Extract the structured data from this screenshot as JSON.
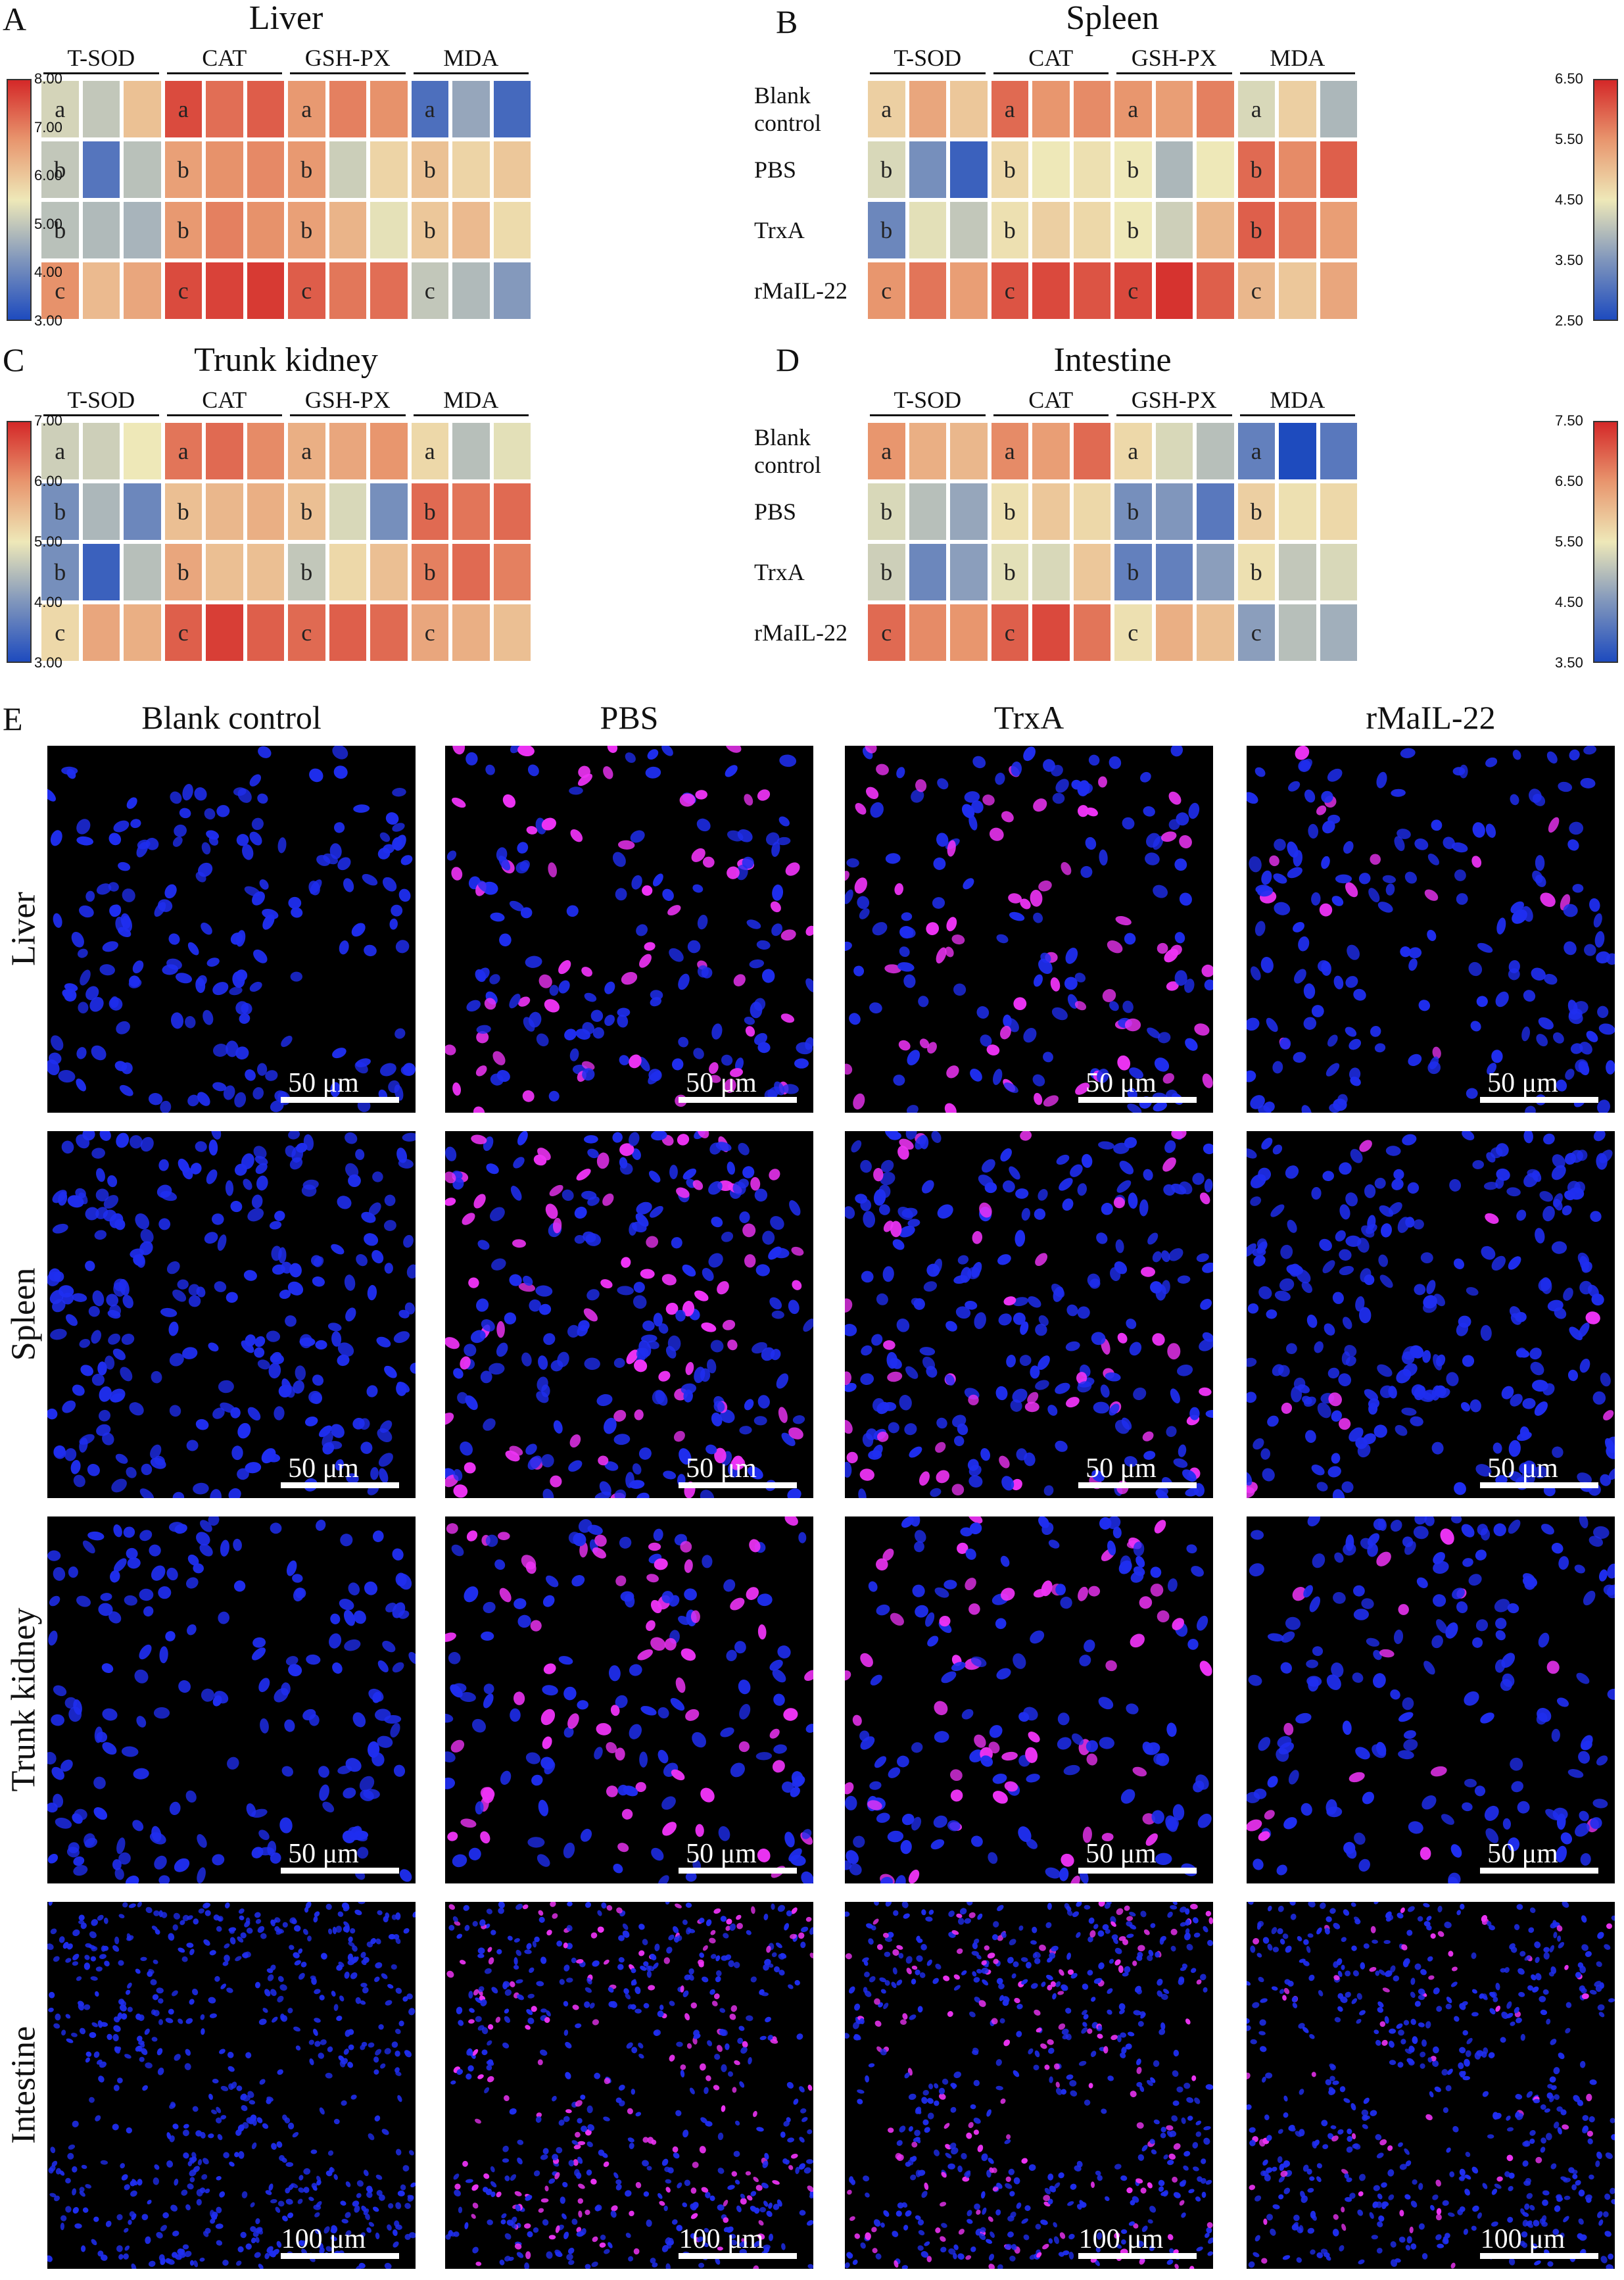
{
  "figure": {
    "panel_letters": [
      "A",
      "B",
      "C",
      "D",
      "E"
    ]
  },
  "heatmaps": [
    {
      "letter": "A",
      "title": "Liver",
      "metrics": [
        "T-SOD",
        "CAT",
        "GSH-PX",
        "MDA"
      ],
      "groups": [
        "Blank control",
        "PBS",
        "TrxA",
        "rMaIL-22"
      ],
      "group_label_lines": [
        [
          "Blank",
          "control"
        ],
        [
          "PBS"
        ],
        [
          "TrxA"
        ],
        [
          "rMaIL-22"
        ]
      ],
      "colorbar": {
        "side": "left",
        "min": 3.0,
        "max": 8.0,
        "ticks": [
          "8.00",
          "7.00",
          "6.00",
          "5.00",
          "4.00",
          "3.00"
        ]
      },
      "letters": [
        [
          "a",
          "a",
          "a",
          "a"
        ],
        [
          "b",
          "b",
          "b",
          "b"
        ],
        [
          "b",
          "b",
          "b",
          "b"
        ],
        [
          "c",
          "c",
          "c",
          "c"
        ]
      ],
      "values": [
        [
          5.2,
          5.0,
          6.1,
          7.6,
          7.2,
          7.4,
          6.7,
          7.0,
          6.8,
          3.6,
          4.5,
          3.5
        ],
        [
          5.0,
          3.7,
          4.9,
          6.6,
          6.8,
          6.9,
          6.7,
          5.1,
          5.8,
          6.1,
          5.8,
          6.0
        ],
        [
          4.9,
          4.8,
          4.7,
          6.7,
          7.0,
          6.8,
          6.6,
          6.3,
          5.4,
          6.0,
          6.2,
          5.7
        ],
        [
          6.8,
          6.2,
          6.5,
          7.6,
          7.7,
          7.8,
          7.4,
          7.1,
          7.2,
          5.0,
          4.8,
          4.3
        ]
      ]
    },
    {
      "letter": "B",
      "title": "Spleen",
      "metrics": [
        "T-SOD",
        "CAT",
        "GSH-PX",
        "MDA"
      ],
      "groups": [
        "Blank control",
        "PBS",
        "TrxA",
        "rMaIL-22"
      ],
      "group_label_lines": [
        [
          "Blank",
          "control"
        ],
        [
          "PBS"
        ],
        [
          "TrxA"
        ],
        [
          "rMaIL-22"
        ]
      ],
      "colorbar": {
        "side": "right",
        "min": 2.5,
        "max": 6.5,
        "ticks": [
          "6.50",
          "5.50",
          "4.50",
          "3.50",
          "2.50"
        ]
      },
      "letters": [
        [
          "a",
          "a",
          "a",
          "a"
        ],
        [
          "b",
          "b",
          "b",
          "b"
        ],
        [
          "b",
          "b",
          "b",
          "b"
        ],
        [
          "c",
          "c",
          "c",
          "c"
        ]
      ],
      "values": [
        [
          4.8,
          5.3,
          4.9,
          5.9,
          5.5,
          5.6,
          5.5,
          5.4,
          5.7,
          4.3,
          4.8,
          3.9
        ],
        [
          4.3,
          3.4,
          2.8,
          4.7,
          4.5,
          4.6,
          4.5,
          3.9,
          4.5,
          5.9,
          5.6,
          6.0
        ],
        [
          3.3,
          4.4,
          4.1,
          4.6,
          4.8,
          4.7,
          4.5,
          4.2,
          5.1,
          6.0,
          5.8,
          5.4
        ],
        [
          5.5,
          5.8,
          5.4,
          6.1,
          6.2,
          6.1,
          6.2,
          6.4,
          6.0,
          5.1,
          4.9,
          5.3
        ]
      ]
    },
    {
      "letter": "C",
      "title": "Trunk kidney",
      "metrics": [
        "T-SOD",
        "CAT",
        "GSH-PX",
        "MDA"
      ],
      "groups": [
        "Blank control",
        "PBS",
        "TrxA",
        "rMaIL-22"
      ],
      "group_label_lines": [
        [
          "Blank",
          "control"
        ],
        [
          "PBS"
        ],
        [
          "TrxA"
        ],
        [
          "rMaIL-22"
        ]
      ],
      "colorbar": {
        "side": "left",
        "min": 3.0,
        "max": 7.0,
        "ticks": [
          "7.00",
          "6.00",
          "5.00",
          "4.00",
          "3.00"
        ]
      },
      "letters": [
        [
          "a",
          "a",
          "a",
          "a"
        ],
        [
          "b",
          "b",
          "b",
          "b"
        ],
        [
          "b",
          "b",
          "b",
          "b"
        ],
        [
          "c",
          "c",
          "c",
          "c"
        ]
      ],
      "values": [
        [
          4.7,
          4.7,
          5.0,
          6.3,
          6.4,
          6.1,
          5.7,
          5.8,
          6.0,
          5.2,
          4.5,
          4.9
        ],
        [
          3.9,
          4.4,
          3.8,
          5.5,
          5.6,
          5.7,
          5.5,
          4.8,
          3.9,
          6.4,
          6.3,
          6.4
        ],
        [
          3.9,
          3.3,
          4.5,
          5.8,
          5.5,
          5.5,
          4.6,
          5.2,
          5.5,
          6.2,
          6.4,
          6.2
        ],
        [
          5.2,
          5.8,
          5.7,
          6.5,
          6.8,
          6.5,
          6.4,
          6.5,
          6.4,
          5.8,
          5.7,
          5.5
        ]
      ]
    },
    {
      "letter": "D",
      "title": "Intestine",
      "metrics": [
        "T-SOD",
        "CAT",
        "GSH-PX",
        "MDA"
      ],
      "groups": [
        "Blank control",
        "PBS",
        "TrxA",
        "rMaIL-22"
      ],
      "group_label_lines": [
        [
          "Blank",
          "control"
        ],
        [
          "PBS"
        ],
        [
          "TrxA"
        ],
        [
          "rMaIL-22"
        ]
      ],
      "colorbar": {
        "side": "right",
        "min": 3.5,
        "max": 7.5,
        "ticks": [
          "7.50",
          "6.50",
          "5.50",
          "4.50",
          "3.50"
        ]
      },
      "letters": [
        [
          "a",
          "a",
          "a",
          "a"
        ],
        [
          "b",
          "b",
          "b",
          "b"
        ],
        [
          "b",
          "b",
          "b",
          "b"
        ],
        [
          "c",
          "c",
          "c",
          "c"
        ]
      ],
      "values": [
        [
          6.5,
          6.2,
          6.1,
          6.6,
          6.4,
          6.9,
          5.7,
          5.3,
          5.0,
          4.2,
          3.5,
          4.1
        ],
        [
          5.3,
          5.0,
          4.7,
          5.6,
          5.9,
          5.7,
          4.4,
          4.5,
          4.1,
          5.8,
          5.6,
          5.7
        ],
        [
          5.2,
          4.3,
          4.6,
          5.4,
          5.3,
          5.9,
          4.2,
          4.2,
          4.6,
          5.6,
          5.1,
          5.3
        ],
        [
          6.9,
          6.6,
          6.5,
          7.0,
          7.2,
          6.8,
          5.6,
          6.2,
          6.0,
          4.6,
          5.0,
          4.8
        ]
      ]
    }
  ],
  "panel_e": {
    "letter": "E",
    "columns": [
      "Blank control",
      "PBS",
      "TrxA",
      "rMaIL-22"
    ],
    "rows": [
      {
        "organ": "Liver",
        "scale": [
          "50 μm",
          "50 μm",
          "50 μm",
          "50 μm"
        ]
      },
      {
        "organ": "Spleen",
        "scale": [
          "50 μm",
          "50 μm",
          "50 μm",
          "50 μm"
        ]
      },
      {
        "organ": "Trunk kidney",
        "scale": [
          "50 μm",
          "50 μm",
          "50 μm",
          "50 μm"
        ]
      },
      {
        "organ": "Intestine",
        "scale": [
          "100 μm",
          "100 μm",
          "100 μm",
          "100 μm"
        ]
      }
    ],
    "magenta_fraction": [
      [
        0.0,
        0.35,
        0.35,
        0.12
      ],
      [
        0.0,
        0.3,
        0.22,
        0.05
      ],
      [
        0.0,
        0.35,
        0.3,
        0.1
      ],
      [
        0.0,
        0.3,
        0.25,
        0.1
      ]
    ],
    "colors": {
      "nuclei_blue": "#1f2ef0",
      "apoptotic_magenta": "#ee33f5",
      "background": "#000000"
    }
  }
}
